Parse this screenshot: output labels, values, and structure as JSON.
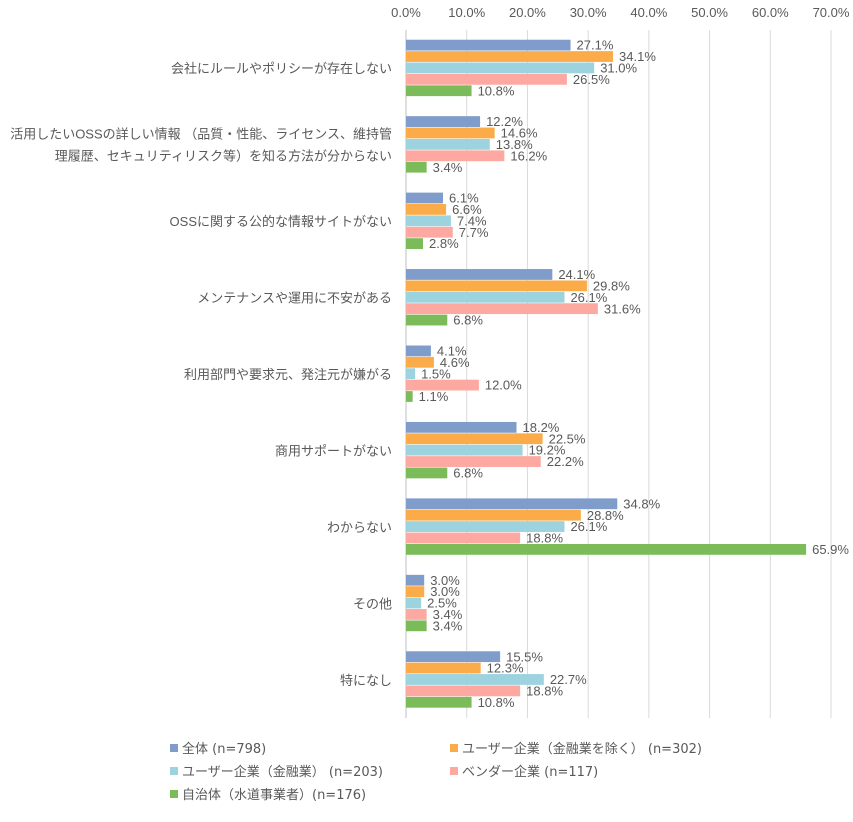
{
  "chart_data": {
    "type": "bar",
    "orientation": "horizontal",
    "categories": [
      [
        "会社にルールやポリシーが存在しない"
      ],
      [
        "活用したいOSSの詳しい情報 （品質・性能、ライセンス、維持管",
        "理履歴、セキュリティリスク等）を知る方法が分からない"
      ],
      [
        "OSSに関する公的な情報サイトがない"
      ],
      [
        "メンテナンスや運用に不安がある"
      ],
      [
        "利用部門や要求元、発注元が嫌がる"
      ],
      [
        "商用サポートがない"
      ],
      [
        "わからない"
      ],
      [
        "その他"
      ],
      [
        "特になし"
      ]
    ],
    "series": [
      {
        "name": "全体 (n=798)",
        "color": "#7f9ccb",
        "values": [
          27.1,
          12.2,
          6.1,
          24.1,
          4.1,
          18.2,
          34.8,
          3.0,
          15.5
        ]
      },
      {
        "name": "ユーザー企業（金融業を除く） (n=302)",
        "color": "#fbac48",
        "values": [
          34.1,
          14.6,
          6.6,
          29.8,
          4.6,
          22.5,
          28.8,
          3.0,
          12.3
        ]
      },
      {
        "name": "ユーザー企業（金融業） (n=203)",
        "color": "#9dd3df",
        "values": [
          31.0,
          13.8,
          7.4,
          26.1,
          1.5,
          19.2,
          26.1,
          2.5,
          22.7
        ]
      },
      {
        "name": "ベンダー企業 (n=117)",
        "color": "#fda8a0",
        "values": [
          26.5,
          16.2,
          7.7,
          31.6,
          12.0,
          22.2,
          18.8,
          3.4,
          18.8
        ]
      },
      {
        "name": "自治体（水道事業者）(n=176)",
        "color": "#7bbb5a",
        "values": [
          10.8,
          3.4,
          2.8,
          6.8,
          1.1,
          6.8,
          65.9,
          3.4,
          10.8
        ]
      }
    ],
    "xlim": [
      0,
      70
    ],
    "xticks": [
      "0.0%",
      "10.0%",
      "20.0%",
      "30.0%",
      "40.0%",
      "50.0%",
      "60.0%",
      "70.0%"
    ],
    "xaxis_position": "top",
    "grid": true,
    "legend_position": "bottom",
    "title": "",
    "xlabel": "",
    "ylabel": ""
  }
}
